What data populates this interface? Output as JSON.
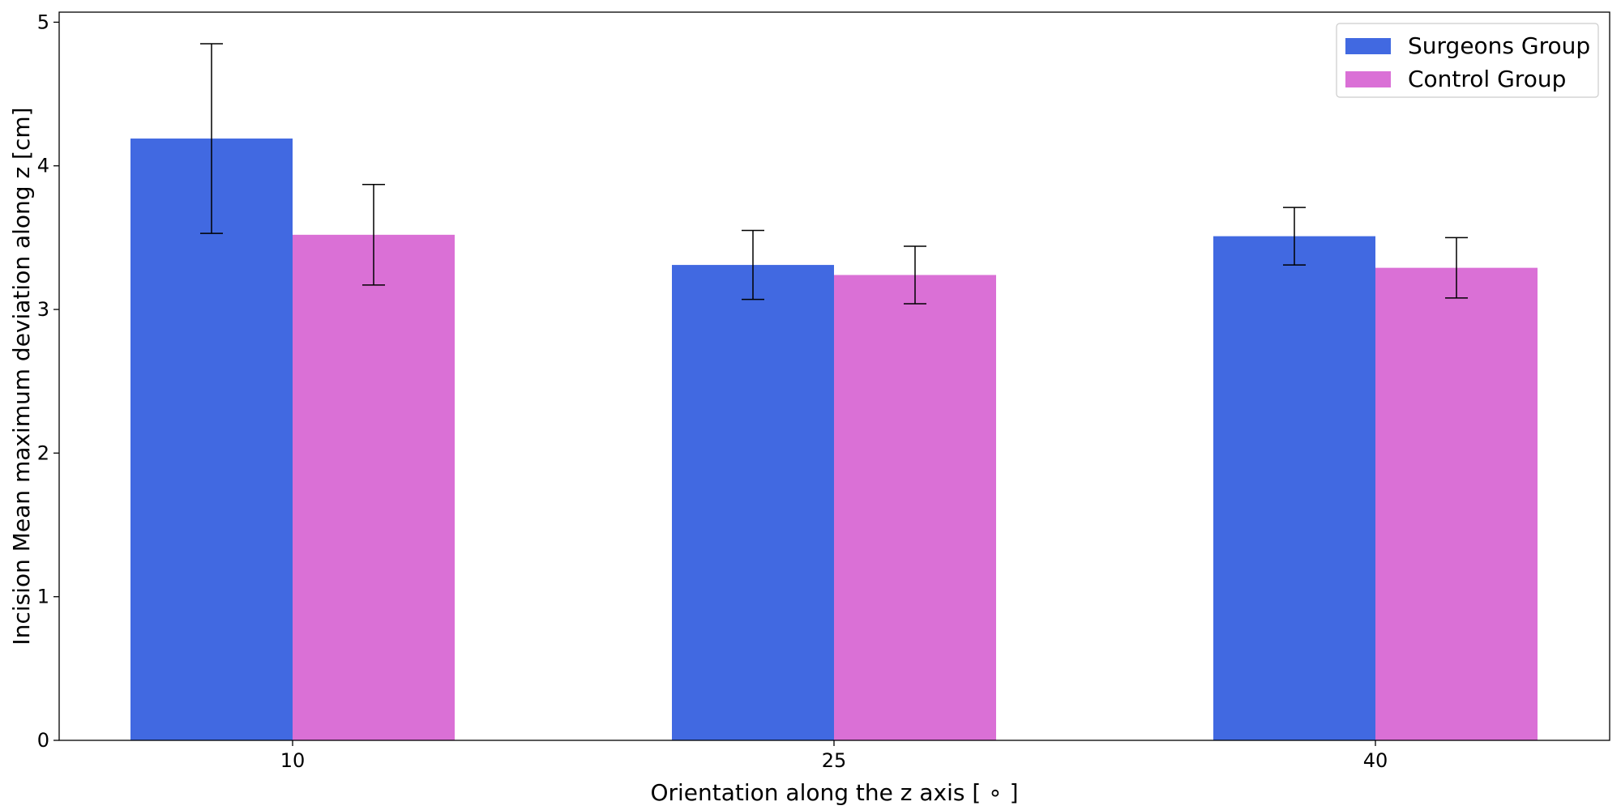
{
  "chart_data": {
    "type": "bar",
    "title": "",
    "xlabel": "Orientation along the z axis [$^\\circ$]",
    "xlabel_display": "Orientation along the z axis [ ∘ ]",
    "ylabel": "Incision Mean maximum deviation along z [cm]",
    "categories": [
      "10",
      "25",
      "40"
    ],
    "ylim": [
      0,
      5.07
    ],
    "yticks": [
      0,
      1,
      2,
      3,
      4,
      5
    ],
    "grid": false,
    "legend_position": "top-right",
    "series": [
      {
        "name": "Surgeons Group",
        "color": "#4169E1",
        "values": [
          4.19,
          3.31,
          3.51
        ],
        "errors": [
          0.66,
          0.24,
          0.2
        ]
      },
      {
        "name": "Control Group",
        "color": "#DA70D6",
        "values": [
          3.52,
          3.24,
          3.29
        ],
        "errors": [
          0.35,
          0.2,
          0.21
        ]
      }
    ]
  }
}
